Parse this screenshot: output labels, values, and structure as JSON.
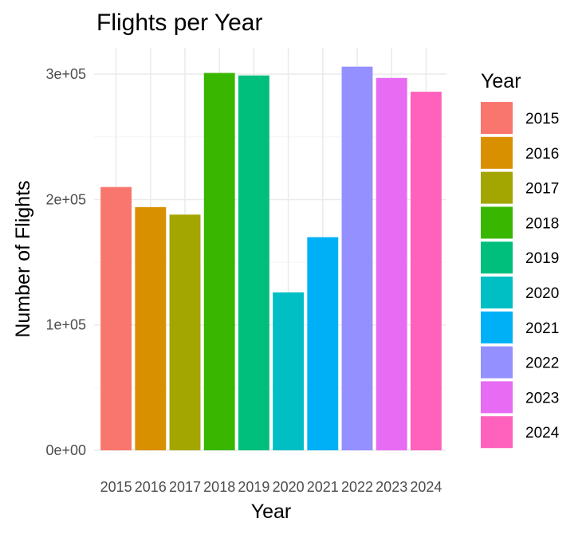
{
  "chart_data": {
    "type": "bar",
    "title": "Flights per Year",
    "xlabel": "Year",
    "ylabel": "Number of Flights",
    "categories": [
      "2015",
      "2016",
      "2017",
      "2018",
      "2019",
      "2020",
      "2021",
      "2022",
      "2023",
      "2024"
    ],
    "values": [
      210000,
      194000,
      188000,
      301000,
      299000,
      126000,
      170000,
      306000,
      297000,
      286000
    ],
    "colors": [
      "#F8766D",
      "#D89000",
      "#A3A500",
      "#39B600",
      "#00BF7D",
      "#00BFC4",
      "#00B0F6",
      "#9590FF",
      "#E76BF3",
      "#FF62BC"
    ],
    "ylim": [
      0,
      320000
    ],
    "yticks": [
      0,
      100000,
      200000,
      300000
    ],
    "ytick_labels": [
      "0e+00",
      "1e+05",
      "2e+05",
      "3e+05"
    ],
    "grid": true,
    "legend": {
      "title": "Year",
      "position": "right",
      "entries": [
        "2015",
        "2016",
        "2017",
        "2018",
        "2019",
        "2020",
        "2021",
        "2022",
        "2023",
        "2024"
      ]
    }
  }
}
